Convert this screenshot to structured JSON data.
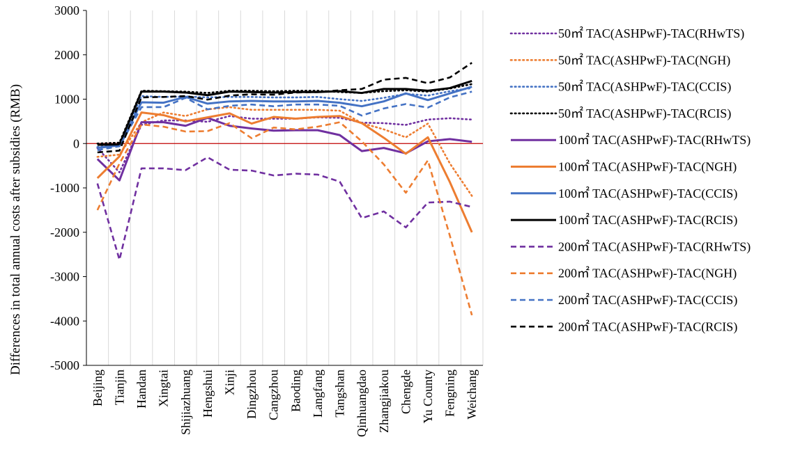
{
  "chart_data": {
    "type": "line",
    "ylabel": "Differences in total annual costs after subsidies (RMB)",
    "ylim": [
      -5000,
      3000
    ],
    "yticks": [
      -5000,
      -4000,
      -3000,
      -2000,
      -1000,
      0,
      1000,
      2000,
      3000
    ],
    "grid": "vertical",
    "legend_position": "right",
    "categories": [
      "Beijing",
      "Tianjin",
      "Handan",
      "Xingtai",
      "Shijiazhuang",
      "Hengshui",
      "Xinji",
      "Dingzhou",
      "Cangzhou",
      "Baoding",
      "Langfang",
      "Tangshan",
      "Qinhuangdao",
      "Zhangjiakou",
      "Chengde",
      "Yu County",
      "Fengning",
      "Weichang"
    ],
    "reference_line": {
      "value": 0,
      "color": "#c00000"
    },
    "series": [
      {
        "name": "50㎡ TAC(ASHPwF)-TAC(RHwTS)",
        "color": "#7030a0",
        "dash": "dot",
        "values": [
          -100,
          -650,
          420,
          520,
          520,
          490,
          620,
          560,
          560,
          560,
          590,
          580,
          470,
          460,
          420,
          540,
          570,
          540
        ]
      },
      {
        "name": "50㎡ TAC(ASHPwF)-TAC(NGH)",
        "color": "#ed7d31",
        "dash": "dot",
        "values": [
          -300,
          -250,
          480,
          700,
          620,
          770,
          820,
          760,
          760,
          760,
          760,
          740,
          460,
          320,
          140,
          450,
          -450,
          -1180
        ]
      },
      {
        "name": "50㎡ TAC(ASHPwF)-TAC(CCIS)",
        "color": "#4472c4",
        "dash": "dot",
        "values": [
          -80,
          -30,
          1070,
          1050,
          1060,
          1040,
          1050,
          1050,
          1040,
          1040,
          1050,
          1000,
          960,
          1030,
          1120,
          1080,
          1180,
          1250
        ]
      },
      {
        "name": "50㎡ TAC(ASHPwF)-TAC(RCIS)",
        "color": "#000000",
        "dash": "dot",
        "values": [
          0,
          20,
          1190,
          1180,
          1170,
          1140,
          1190,
          1190,
          1180,
          1190,
          1190,
          1160,
          1140,
          1180,
          1200,
          1170,
          1240,
          1340
        ]
      },
      {
        "name": "100㎡ TAC(ASHPwF)-TAC(RHwTS)",
        "color": "#7030a0",
        "dash": "solid",
        "values": [
          -350,
          -830,
          480,
          480,
          400,
          580,
          400,
          340,
          290,
          300,
          300,
          190,
          -170,
          -100,
          -220,
          50,
          100,
          40
        ]
      },
      {
        "name": "100㎡ TAC(ASHPwF)-TAC(NGH)",
        "color": "#ed7d31",
        "dash": "solid",
        "values": [
          -780,
          -290,
          700,
          640,
          500,
          590,
          680,
          450,
          600,
          560,
          600,
          620,
          460,
          130,
          -230,
          140,
          -870,
          -2000
        ]
      },
      {
        "name": "100㎡ TAC(ASHPwF)-TAC(CCIS)",
        "color": "#4472c4",
        "dash": "solid",
        "values": [
          -100,
          -40,
          930,
          920,
          1050,
          900,
          950,
          960,
          950,
          950,
          960,
          920,
          840,
          950,
          1130,
          980,
          1130,
          1280
        ]
      },
      {
        "name": "100㎡ TAC(ASHPwF)-TAC(RCIS)",
        "color": "#000000",
        "dash": "solid",
        "values": [
          -30,
          -20,
          1170,
          1170,
          1150,
          1090,
          1170,
          1160,
          1150,
          1160,
          1160,
          1180,
          1140,
          1230,
          1230,
          1190,
          1250,
          1410
        ]
      },
      {
        "name": "200㎡ TAC(ASHPwF)-TAC(RHwTS)",
        "color": "#7030a0",
        "dash": "dash",
        "values": [
          -900,
          -2620,
          -560,
          -560,
          -600,
          -310,
          -590,
          -610,
          -720,
          -680,
          -700,
          -860,
          -1680,
          -1530,
          -1890,
          -1330,
          -1310,
          -1430
        ]
      },
      {
        "name": "200㎡ TAC(ASHPwF)-TAC(NGH)",
        "color": "#ed7d31",
        "dash": "dash",
        "values": [
          -1500,
          -450,
          430,
          380,
          270,
          280,
          460,
          120,
          360,
          320,
          380,
          480,
          50,
          -470,
          -1110,
          -380,
          -2080,
          -3870
        ]
      },
      {
        "name": "200㎡ TAC(ASHPwF)-TAC(CCIS)",
        "color": "#4472c4",
        "dash": "dash",
        "values": [
          -150,
          -60,
          820,
          820,
          1030,
          770,
          850,
          880,
          840,
          880,
          880,
          850,
          630,
          790,
          890,
          810,
          1040,
          1170
        ]
      },
      {
        "name": "200㎡ TAC(ASHPwF)-TAC(RCIS)",
        "color": "#000000",
        "dash": "dash",
        "values": [
          -200,
          -160,
          1040,
          1050,
          1070,
          990,
          1080,
          1110,
          1100,
          1150,
          1160,
          1200,
          1230,
          1440,
          1480,
          1360,
          1490,
          1820
        ]
      }
    ]
  }
}
